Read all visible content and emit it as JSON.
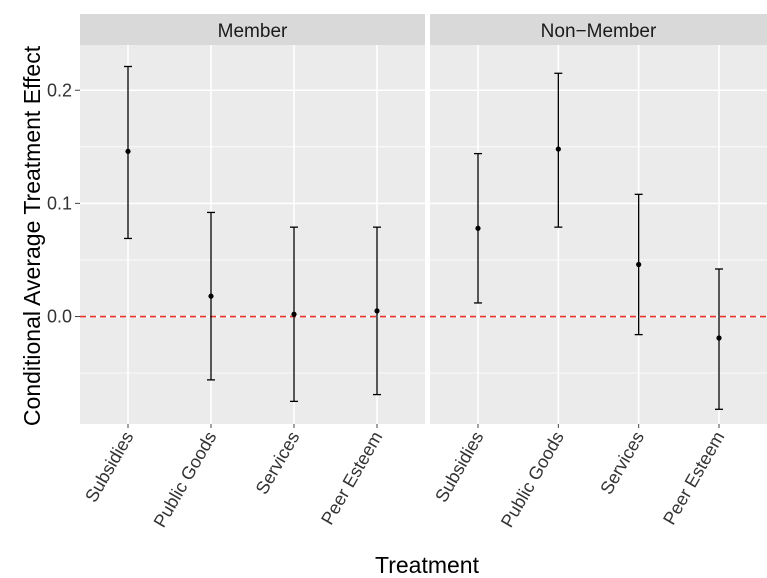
{
  "chart_data": {
    "type": "scatter",
    "subtype": "point-with-error-bars",
    "xlabel": "Treatment",
    "ylabel": "Conditional Average Treatment Effect",
    "categories": [
      "Subsidies",
      "Public Goods",
      "Services",
      "Peer Esteem"
    ],
    "ylim": [
      -0.095,
      0.24
    ],
    "yticks": [
      0.0,
      0.1,
      0.2
    ],
    "ytick_labels": [
      "0.0",
      "0.1",
      "0.2"
    ],
    "reference_line": {
      "y": 0.0,
      "color": "#e8342a",
      "style": "dashed"
    },
    "grid": true,
    "colors": {
      "panel_bg": "#ebebeb",
      "strip_bg": "#d9d9d9",
      "grid": "#ffffff",
      "points": "#000000"
    },
    "panels": [
      {
        "name": "Member",
        "points": [
          {
            "category": "Subsidies",
            "estimate": 0.146,
            "lower": 0.069,
            "upper": 0.221
          },
          {
            "category": "Public Goods",
            "estimate": 0.018,
            "lower": -0.056,
            "upper": 0.092
          },
          {
            "category": "Services",
            "estimate": 0.002,
            "lower": -0.075,
            "upper": 0.079
          },
          {
            "category": "Peer Esteem",
            "estimate": 0.005,
            "lower": -0.069,
            "upper": 0.079
          }
        ]
      },
      {
        "name": "Non−Member",
        "points": [
          {
            "category": "Subsidies",
            "estimate": 0.078,
            "lower": 0.012,
            "upper": 0.144
          },
          {
            "category": "Public Goods",
            "estimate": 0.148,
            "lower": 0.079,
            "upper": 0.215
          },
          {
            "category": "Services",
            "estimate": 0.046,
            "lower": -0.016,
            "upper": 0.108
          },
          {
            "category": "Peer Esteem",
            "estimate": -0.019,
            "lower": -0.082,
            "upper": 0.042
          }
        ]
      }
    ]
  }
}
